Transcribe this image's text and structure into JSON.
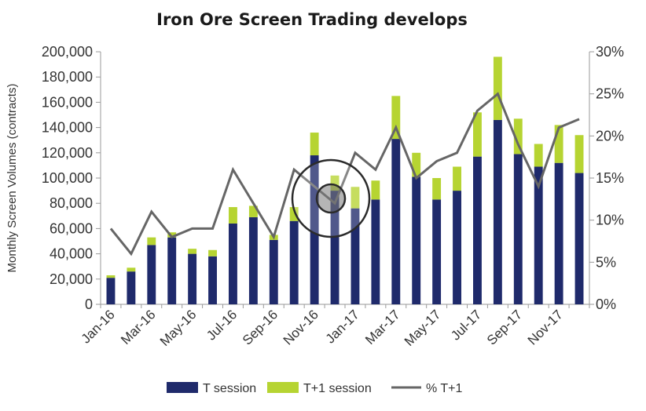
{
  "chart_data": {
    "type": "bar",
    "stacked": true,
    "title": "Iron Ore Screen Trading develops",
    "xlabel": "",
    "ylabel": "Monthly Screen Volumes (contracts)",
    "y2label": "",
    "categories": [
      "Jan-16",
      "Feb-16",
      "Mar-16",
      "Apr-16",
      "May-16",
      "Jun-16",
      "Jul-16",
      "Aug-16",
      "Sep-16",
      "Oct-16",
      "Nov-16",
      "Dec-16",
      "Jan-17",
      "Feb-17",
      "Mar-17",
      "Apr-17",
      "May-17",
      "Jun-17",
      "Jul-17",
      "Aug-17",
      "Sep-17",
      "Oct-17",
      "Nov-17",
      "Dec-17"
    ],
    "x_tick_labels": [
      "Jan-16",
      "Mar-16",
      "May-16",
      "Jul-16",
      "Sep-16",
      "Nov-16",
      "Jan-17",
      "Mar-17",
      "May-17",
      "Jul-17",
      "Sep-17",
      "Nov-17"
    ],
    "series": [
      {
        "name": "T session",
        "kind": "bar",
        "axis": "left",
        "color": "#1f2a6b",
        "values": [
          21000,
          26000,
          47000,
          53000,
          40000,
          38000,
          64000,
          69000,
          51000,
          66000,
          118000,
          90000,
          76000,
          83000,
          131000,
          101000,
          83000,
          90000,
          117000,
          146000,
          119000,
          109000,
          112000,
          104000
        ]
      },
      {
        "name": "T+1 session",
        "kind": "bar",
        "axis": "left",
        "color": "#b6d432",
        "values": [
          2000,
          3000,
          6000,
          4000,
          4000,
          5000,
          13000,
          9000,
          4000,
          11000,
          18000,
          12000,
          17000,
          15000,
          34000,
          19000,
          17000,
          19000,
          35000,
          50000,
          28000,
          18000,
          30000,
          30000
        ]
      },
      {
        "name": "% T+1",
        "kind": "line",
        "axis": "right",
        "color": "#666666",
        "values": [
          9,
          6,
          11,
          8,
          9,
          9,
          16,
          12,
          8,
          16,
          14,
          12,
          18,
          16,
          21,
          15,
          17,
          18,
          23,
          25,
          19,
          14,
          21,
          22
        ]
      }
    ],
    "ylim": [
      0,
      200000
    ],
    "y_ticks": [
      "0",
      "20,000",
      "40,000",
      "60,000",
      "80,000",
      "100,000",
      "120,000",
      "140,000",
      "160,000",
      "180,000",
      "200,000"
    ],
    "y2lim": [
      0,
      30
    ],
    "y2_ticks": [
      "0%",
      "5%",
      "10%",
      "15%",
      "20%",
      "25%",
      "30%"
    ],
    "grid": false,
    "legend_position": "bottom"
  }
}
